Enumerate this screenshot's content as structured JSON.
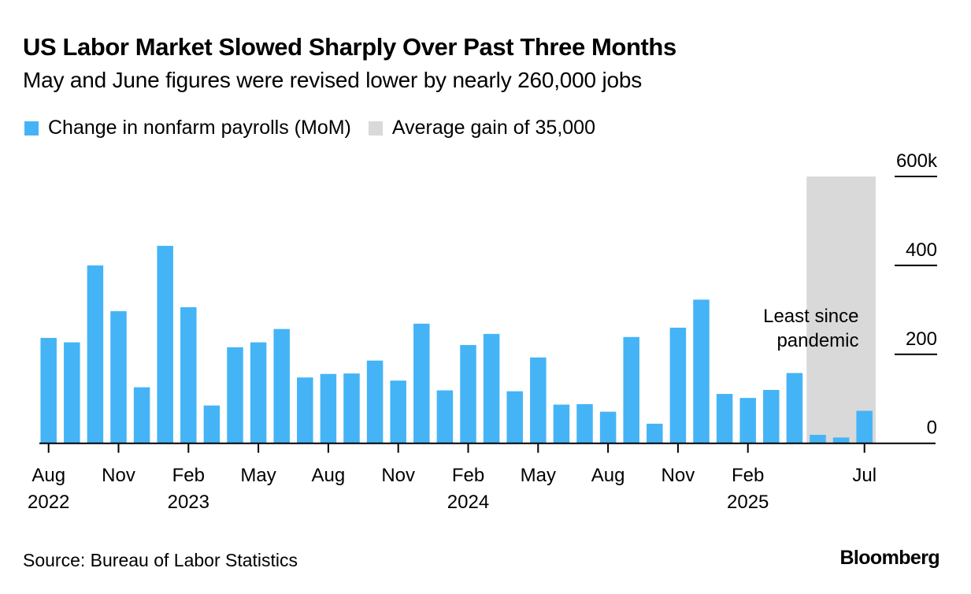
{
  "header": {
    "title": "US Labor Market Slowed Sharply Over Past Three Months",
    "subtitle": "May and June figures were revised lower by nearly 260,000 jobs"
  },
  "legend": [
    {
      "label": "Change in nonfarm payrolls (MoM)",
      "color": "#44b4f6"
    },
    {
      "label": "Average gain of 35,000",
      "color": "#d9d9d9"
    }
  ],
  "footer": {
    "source": "Source: Bureau of Labor Statistics",
    "brand": "Bloomberg"
  },
  "chart_data": {
    "type": "bar",
    "title": "US Labor Market Slowed Sharply Over Past Three Months",
    "subtitle": "May and June figures were revised lower by nearly 260,000 jobs",
    "xlabel": "",
    "ylabel": "",
    "ylim": [
      0,
      600
    ],
    "y_unit": "thousands",
    "y_ticks": [
      {
        "value": 600,
        "label": "600k"
      },
      {
        "value": 400,
        "label": "400"
      },
      {
        "value": 200,
        "label": "200"
      },
      {
        "value": 0,
        "label": "0"
      }
    ],
    "y_axis_side": "right",
    "grid": false,
    "legend_position": "top-left",
    "categories": [
      "2022-08",
      "2022-09",
      "2022-10",
      "2022-11",
      "2022-12",
      "2023-01",
      "2023-02",
      "2023-03",
      "2023-04",
      "2023-05",
      "2023-06",
      "2023-07",
      "2023-08",
      "2023-09",
      "2023-10",
      "2023-11",
      "2023-12",
      "2024-01",
      "2024-02",
      "2024-03",
      "2024-04",
      "2024-05",
      "2024-06",
      "2024-07",
      "2024-08",
      "2024-09",
      "2024-10",
      "2024-11",
      "2024-12",
      "2025-01",
      "2025-02",
      "2025-03",
      "2025-04",
      "2025-05",
      "2025-06",
      "2025-07"
    ],
    "series": [
      {
        "name": "Change in nonfarm payrolls (MoM)",
        "color": "#44b4f6",
        "values": [
          237,
          227,
          400,
          297,
          126,
          444,
          306,
          85,
          216,
          227,
          257,
          148,
          156,
          157,
          186,
          141,
          269,
          119,
          221,
          246,
          117,
          193,
          87,
          88,
          71,
          239,
          44,
          260,
          323,
          111,
          102,
          120,
          158,
          19,
          13,
          73
        ]
      }
    ],
    "x_tick_labels": [
      {
        "category": "2022-08",
        "month": "Aug",
        "year": "2022"
      },
      {
        "category": "2022-11",
        "month": "Nov",
        "year": ""
      },
      {
        "category": "2023-02",
        "month": "Feb",
        "year": "2023"
      },
      {
        "category": "2023-05",
        "month": "May",
        "year": ""
      },
      {
        "category": "2023-08",
        "month": "Aug",
        "year": ""
      },
      {
        "category": "2023-11",
        "month": "Nov",
        "year": ""
      },
      {
        "category": "2024-02",
        "month": "Feb",
        "year": "2024"
      },
      {
        "category": "2024-05",
        "month": "May",
        "year": ""
      },
      {
        "category": "2024-08",
        "month": "Aug",
        "year": ""
      },
      {
        "category": "2024-11",
        "month": "Nov",
        "year": ""
      },
      {
        "category": "2025-02",
        "month": "Feb",
        "year": "2025"
      },
      {
        "category": "2025-07",
        "month": "Jul",
        "year": ""
      }
    ],
    "highlight_band": {
      "label": "Average gain of 35,000",
      "from": "2025-05",
      "to": "2025-07",
      "color": "#d9d9d9"
    },
    "annotations": [
      {
        "text_lines": [
          "Least since",
          "pandemic"
        ],
        "anchor_category": "2025-05"
      }
    ]
  }
}
